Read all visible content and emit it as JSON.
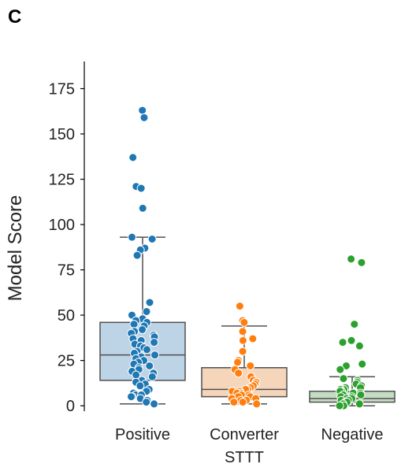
{
  "panel_label": "C",
  "chart_data": {
    "type": "box",
    "title": "",
    "xlabel": "",
    "ylabel": "Model Score",
    "ylim": [
      -3,
      190
    ],
    "yticks": [
      0,
      25,
      50,
      75,
      100,
      125,
      150,
      175
    ],
    "grid": false,
    "categories": [
      {
        "label_lines": [
          "Positive"
        ]
      },
      {
        "label_lines": [
          "Converter",
          "STTT"
        ]
      },
      {
        "label_lines": [
          "Negative"
        ]
      }
    ],
    "series": [
      {
        "category": 0,
        "color": "#1f77b4",
        "box_fill": "#bdd3e6",
        "box": {
          "whisker_low": 1,
          "q1": 14,
          "median": 28,
          "q3": 46,
          "whisker_high": 93
        },
        "points": [
          163,
          159,
          137,
          121,
          120,
          109,
          93,
          92,
          87,
          86,
          83,
          57,
          52,
          50,
          48,
          47,
          46,
          45,
          44,
          42,
          41,
          40,
          39,
          38,
          37,
          36,
          35,
          34,
          33,
          32,
          31,
          30,
          29,
          28,
          27,
          26,
          25,
          24,
          23,
          22,
          21,
          20,
          19,
          18,
          17,
          16,
          14,
          13,
          12,
          11,
          9,
          8,
          7,
          6,
          6,
          5,
          5,
          4,
          3,
          2,
          1
        ]
      },
      {
        "category": 1,
        "color": "#ff7f0e",
        "box_fill": "#f6d6bb",
        "box": {
          "whisker_low": 1,
          "q1": 5,
          "median": 9,
          "q3": 21,
          "whisker_high": 44
        },
        "points": [
          55,
          47,
          46,
          41,
          37,
          36,
          30,
          25,
          24,
          22,
          20,
          18,
          16,
          14,
          13,
          12,
          11,
          10,
          9,
          9,
          8,
          8,
          7,
          7,
          6,
          6,
          5,
          5,
          4,
          4,
          3,
          3,
          2,
          2,
          1
        ]
      },
      {
        "category": 2,
        "color": "#2ca02c",
        "box_fill": "#c4dcc2",
        "box": {
          "whisker_low": 0,
          "q1": 2,
          "median": 4,
          "q3": 8,
          "whisker_high": 16
        },
        "points": [
          81,
          79,
          45,
          36,
          35,
          33,
          23,
          22,
          20,
          15,
          14,
          13,
          12,
          11,
          10,
          10,
          9,
          9,
          8,
          8,
          7,
          7,
          6,
          6,
          5,
          5,
          4,
          4,
          3,
          3,
          2,
          2,
          1,
          1,
          0,
          0
        ]
      }
    ]
  }
}
